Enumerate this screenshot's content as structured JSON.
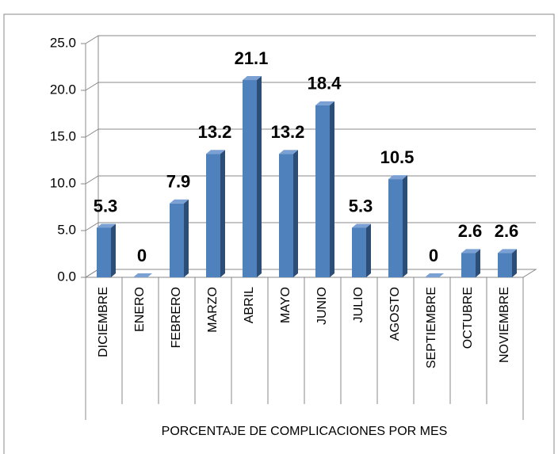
{
  "chart_data": {
    "type": "bar",
    "x_label": "PORCENTAJE DE COMPLICACIONES POR MES",
    "categories": [
      "DICIEMBRE",
      "ENERO",
      "FEBRERO",
      "MARZO",
      "ABRIL",
      "MAYO",
      "JUNIO",
      "JULIO",
      "AGOSTO",
      "SEPTIEMBRE",
      "OCTUBRE",
      "NOVIEMBRE"
    ],
    "values": [
      5.3,
      0,
      7.9,
      13.2,
      21.1,
      13.2,
      18.4,
      5.3,
      10.5,
      0,
      2.6,
      2.6
    ],
    "color": "#4f81bd",
    "ylim": [
      0,
      25
    ],
    "yticks": [
      {
        "value": 0,
        "label": "0.0"
      },
      {
        "value": 5,
        "label": "5.0"
      },
      {
        "value": 10,
        "label": "10.0"
      },
      {
        "value": 15,
        "label": "15.0"
      },
      {
        "value": 20,
        "label": "20.0"
      },
      {
        "value": 25,
        "label": "25.0"
      }
    ],
    "grid": true
  }
}
